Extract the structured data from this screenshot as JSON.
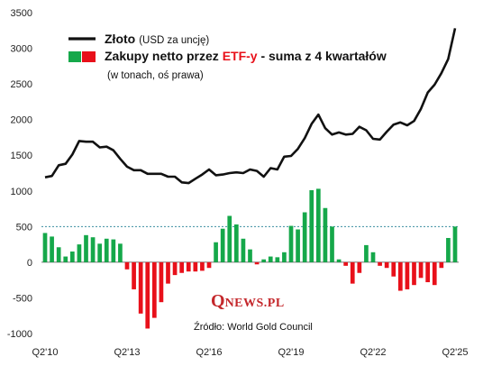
{
  "chart_data": {
    "type": "line+bar",
    "legend": {
      "line_label_bold": "Złoto",
      "line_label_unit": "(USD za uncję)",
      "bar_label_prefix": "Zakupy netto przez ",
      "bar_label_highlight": "ETF-y",
      "bar_label_suffix": " - suma z 4 kwartałów",
      "bar_label_note": "(w tonach, oś prawa)"
    },
    "source": "Źródło: World Gold Council",
    "logo": {
      "q": "Q",
      "rest": "NEWS.PL"
    },
    "y_axis": {
      "min": -1000,
      "max": 3500,
      "ticks": [
        3500,
        3000,
        2500,
        2000,
        1500,
        1000,
        500,
        0,
        -500,
        -1000
      ]
    },
    "x_tick_labels": [
      {
        "index": 0,
        "label": "Q2'10"
      },
      {
        "index": 12,
        "label": "Q2'13"
      },
      {
        "index": 24,
        "label": "Q2'16"
      },
      {
        "index": 36,
        "label": "Q2'19"
      },
      {
        "index": 48,
        "label": "Q2'22"
      },
      {
        "index": 60,
        "label": "Q2'25"
      }
    ],
    "reference_line": {
      "value": 500,
      "style": "dashed"
    },
    "gold_price_usd": [
      1190,
      1210,
      1360,
      1380,
      1510,
      1700,
      1690,
      1690,
      1610,
      1620,
      1570,
      1450,
      1340,
      1290,
      1290,
      1240,
      1240,
      1240,
      1200,
      1200,
      1120,
      1110,
      1170,
      1230,
      1300,
      1220,
      1230,
      1250,
      1260,
      1250,
      1300,
      1280,
      1200,
      1320,
      1300,
      1480,
      1490,
      1590,
      1740,
      1940,
      2070,
      1880,
      1790,
      1820,
      1790,
      1800,
      1900,
      1850,
      1730,
      1720,
      1830,
      1930,
      1960,
      1920,
      1980,
      2150,
      2380,
      2490,
      2650,
      2850,
      3280
    ],
    "etf_flows_tonnes": [
      410,
      360,
      210,
      80,
      150,
      250,
      380,
      350,
      260,
      330,
      320,
      260,
      -100,
      -380,
      -720,
      -930,
      -780,
      -560,
      -300,
      -180,
      -150,
      -130,
      -130,
      -120,
      -80,
      280,
      470,
      650,
      530,
      330,
      180,
      -30,
      40,
      80,
      70,
      140,
      510,
      460,
      700,
      1010,
      1030,
      760,
      500,
      40,
      -50,
      -300,
      -150,
      240,
      140,
      -50,
      -80,
      -200,
      -400,
      -380,
      -320,
      -220,
      -280,
      -320,
      -80,
      340,
      500
    ]
  }
}
